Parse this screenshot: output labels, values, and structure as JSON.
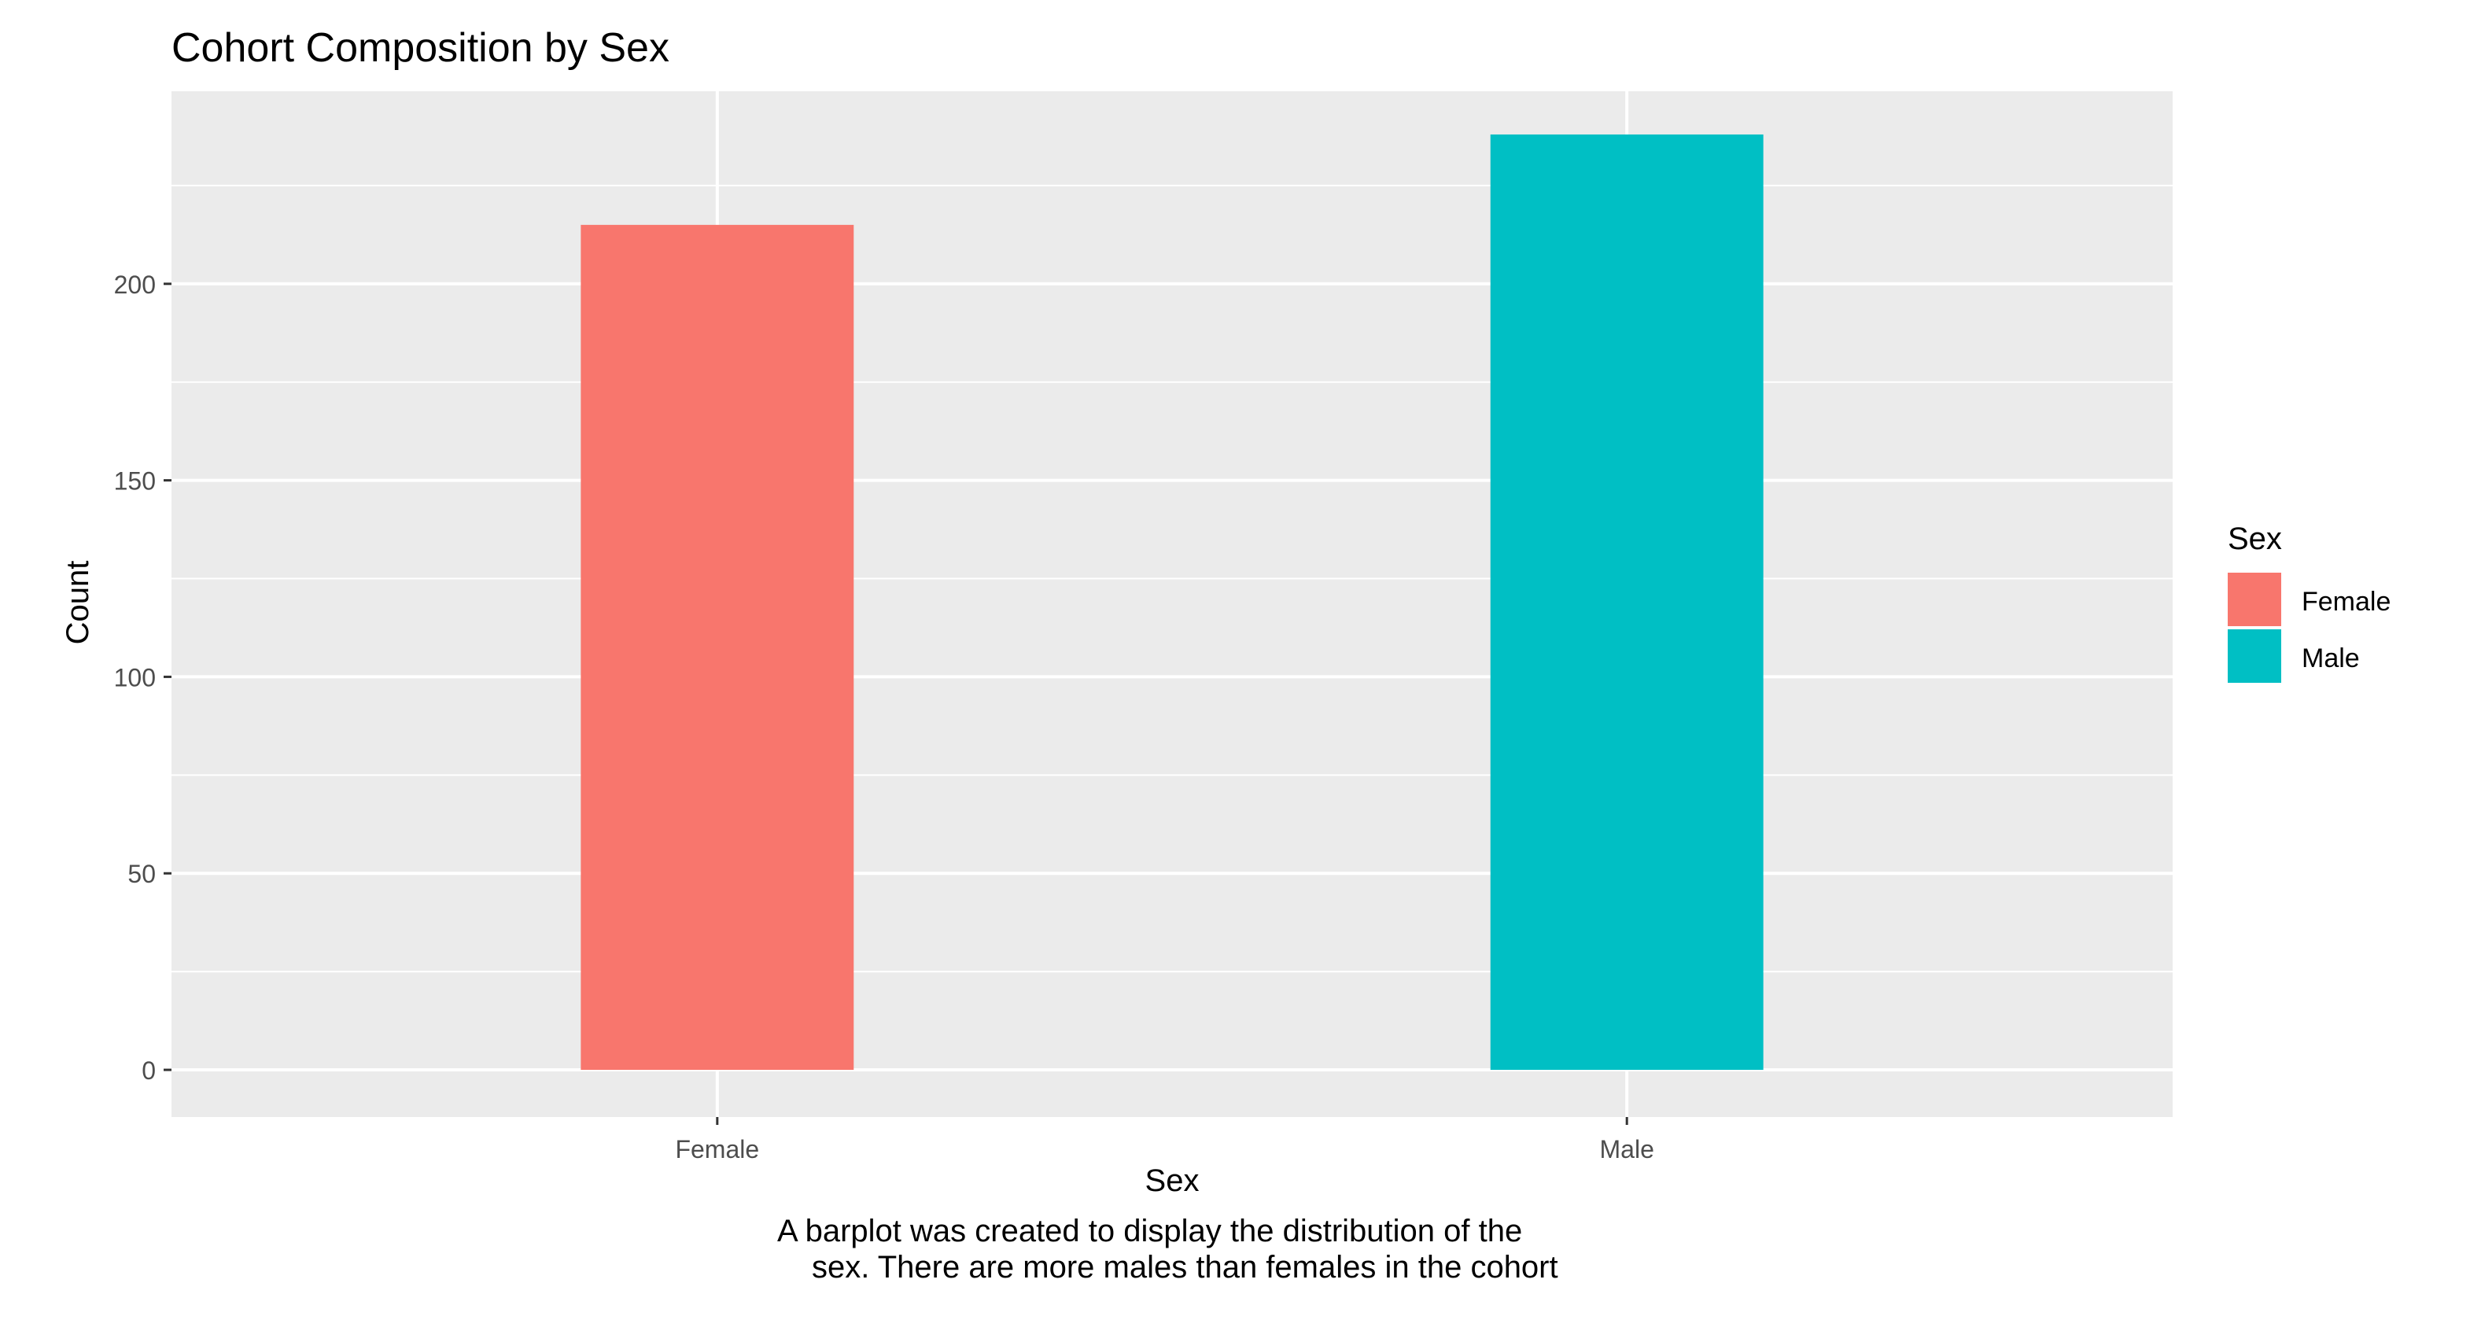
{
  "chart_data": {
    "type": "bar",
    "title": "Cohort Composition by Sex",
    "xlabel": "Sex",
    "ylabel": "Count",
    "categories": [
      "Female",
      "Male"
    ],
    "values": [
      215,
      238
    ],
    "colors": [
      "#F8766D",
      "#00BFC4"
    ],
    "ylim": [
      -12,
      249
    ],
    "yticks": [
      0,
      50,
      100,
      150,
      200
    ],
    "ytick_labels": [
      "0",
      "50",
      "100",
      "150",
      "200"
    ],
    "grid": true,
    "panel_background": "#EBEBEB",
    "legend": {
      "title": "Sex",
      "position": "right",
      "entries": [
        {
          "label": "Female",
          "color": "#F8766D"
        },
        {
          "label": "Male",
          "color": "#00BFC4"
        }
      ]
    },
    "caption_lines": [
      "A barplot was created to display the distribution of the",
      "sex. There are more males than females in the cohort"
    ]
  }
}
